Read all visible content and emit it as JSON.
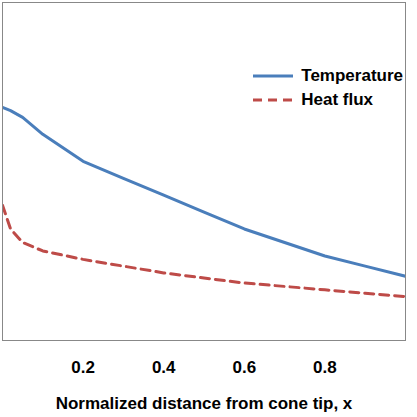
{
  "chart_data": {
    "type": "line",
    "x_label": "Normalized distance from cone tip, x",
    "xlim": [
      0,
      1
    ],
    "xticks": [
      0.2,
      0.4,
      0.6,
      0.8
    ],
    "ylim": [
      0,
      1
    ],
    "tick_labels": "x",
    "legend": "top-right",
    "x": [
      0,
      0.02,
      0.05,
      0.1,
      0.2,
      0.3,
      0.4,
      0.5,
      0.6,
      0.7,
      0.8,
      0.9,
      1.0
    ],
    "series": [
      {
        "name": "Temperature",
        "color": "#4a7ebb",
        "line_style": "solid",
        "values": [
          0.69,
          0.68,
          0.66,
          0.61,
          0.53,
          0.48,
          0.43,
          0.38,
          0.33,
          0.29,
          0.25,
          0.22,
          0.19
        ]
      },
      {
        "name": "Heat flux",
        "color": "#be4b48",
        "line_style": "dashed",
        "values": [
          0.4,
          0.33,
          0.29,
          0.265,
          0.24,
          0.22,
          0.2,
          0.185,
          0.17,
          0.16,
          0.15,
          0.14,
          0.13
        ]
      }
    ]
  }
}
